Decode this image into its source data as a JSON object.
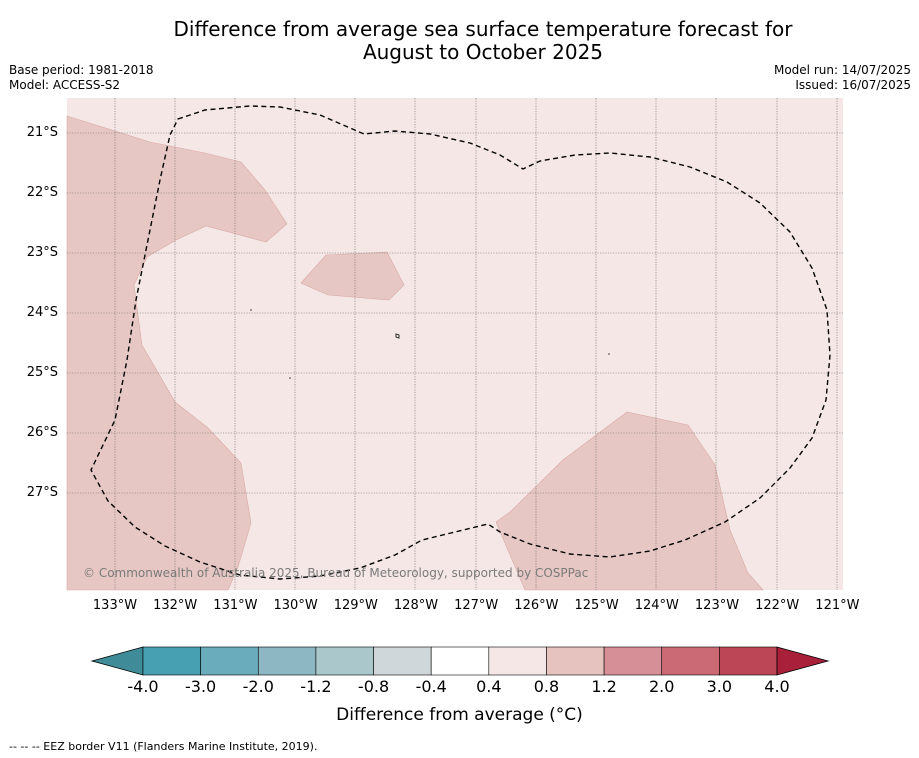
{
  "title": {
    "line1": "Difference from average sea surface temperature forecast for",
    "line2": "August to October 2025"
  },
  "meta": {
    "base_period": "Base period: 1981-2018",
    "model": "Model: ACCESS-S2",
    "model_run": "Model run: 14/07/2025",
    "issued": "Issued: 16/07/2025"
  },
  "map": {
    "lat_labels": [
      "21°S",
      "22°S",
      "23°S",
      "24°S",
      "25°S",
      "26°S",
      "27°S"
    ],
    "lon_labels": [
      "133°W",
      "132°W",
      "131°W",
      "130°W",
      "129°W",
      "128°W",
      "127°W",
      "126°W",
      "125°W",
      "124°W",
      "123°W",
      "122°W",
      "121°W"
    ],
    "copyright": "© Commonwealth of Australia 2025, Bureau of Meteorology, supported by COSPPac",
    "background_category": "0.4 to 0.8",
    "patch_category": "0.8 to 1.2"
  },
  "colorbar": {
    "ticks": [
      "-4.0",
      "-3.0",
      "-2.0",
      "-1.2",
      "-0.8",
      "-0.4",
      "0.4",
      "0.8",
      "1.2",
      "2.0",
      "3.0",
      "4.0"
    ],
    "colors": [
      "#3f8c98",
      "#46a0b2",
      "#6aacbb",
      "#8db7c2",
      "#aac7cb",
      "#d0d7da",
      "#ffffff",
      "#f5e7e6",
      "#e7c3c0",
      "#d68f97",
      "#cb6974",
      "#bc4655",
      "#a8203a"
    ],
    "label": "Difference from average (°C)"
  },
  "footnote": "--  --  -- EEZ border V11 (Flanders Marine Institute, 2019)."
}
